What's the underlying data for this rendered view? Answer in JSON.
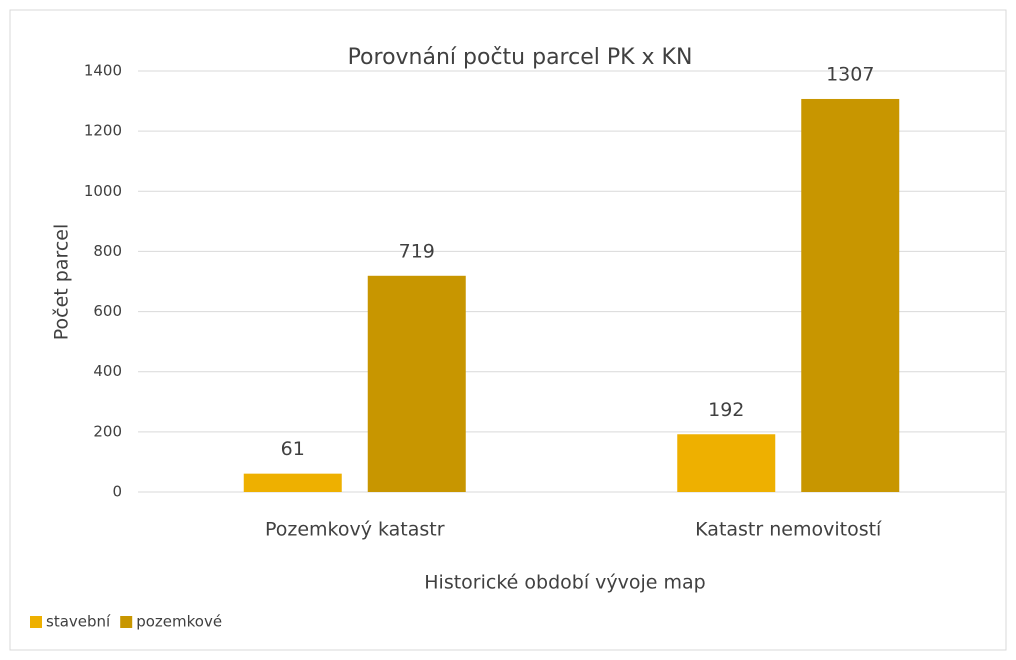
{
  "chart_data": {
    "type": "bar",
    "title": "Porovnání počtu parcel  PK x KN",
    "x_label": "Historické období vývoje map",
    "y_label": "Počet parcel",
    "categories": [
      "Pozemkový katastr",
      "Katastr nemovitostí"
    ],
    "series": [
      {
        "name": "stavební",
        "color": "#eeb000",
        "values": [
          61,
          192
        ]
      },
      {
        "name": "pozemkové",
        "color": "#c89600",
        "values": [
          719,
          1307
        ]
      }
    ],
    "ylim": [
      0,
      1400
    ],
    "yticks": [
      0,
      200,
      400,
      600,
      800,
      1000,
      1200,
      1400
    ],
    "grid": true,
    "legend": "bottom-left"
  }
}
